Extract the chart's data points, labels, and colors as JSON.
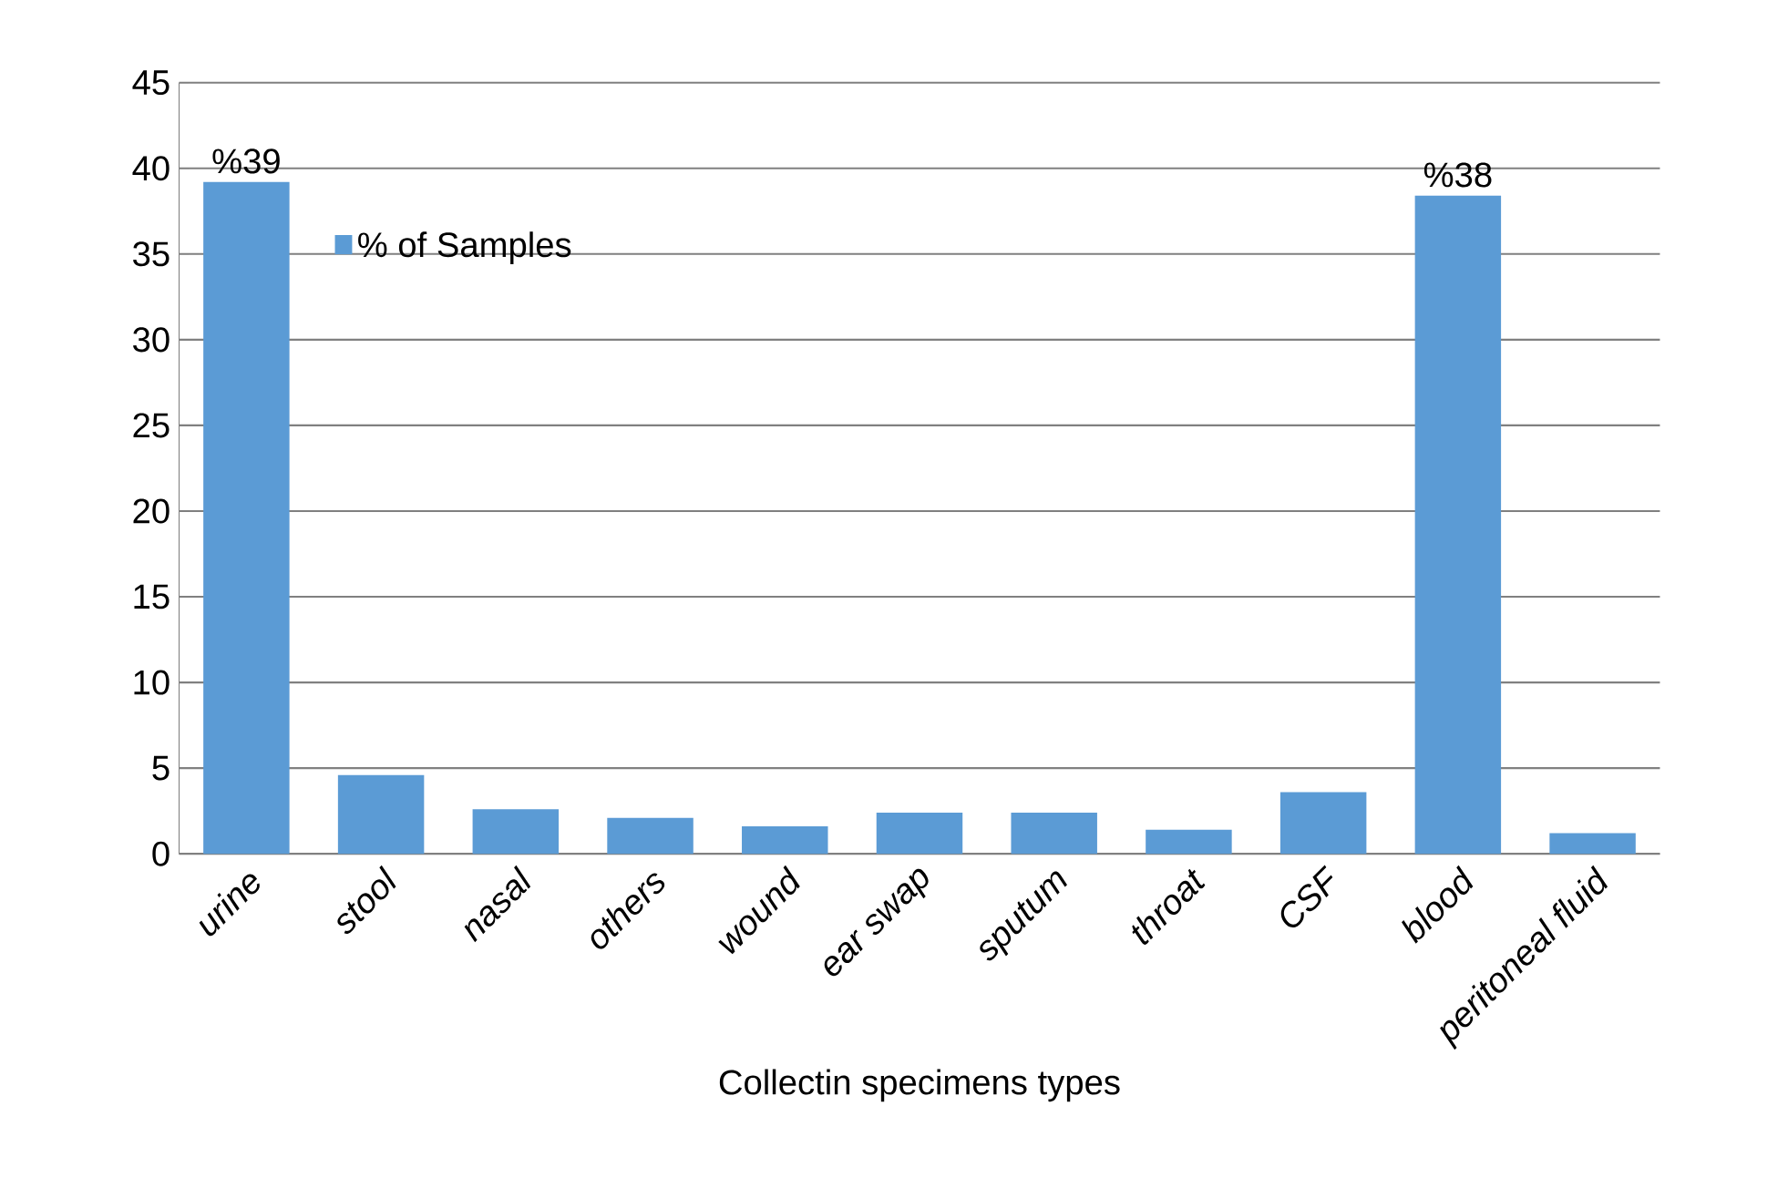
{
  "chart_data": {
    "type": "bar",
    "xlabel": "Collectin specimens types",
    "categories": [
      "urine",
      "stool",
      "nasal",
      "others",
      "wound",
      "ear swap",
      "sputum",
      "throat",
      "CSF",
      "blood",
      "peritoneal fluid"
    ],
    "series": [
      {
        "name": "% of Samples",
        "color": "#5b9bd5",
        "values": [
          39.2,
          4.6,
          2.6,
          2.1,
          1.6,
          2.4,
          2.4,
          1.4,
          3.6,
          38.4,
          1.2
        ],
        "value_labels": [
          "%39",
          null,
          null,
          null,
          null,
          null,
          null,
          null,
          null,
          "%38",
          null
        ]
      }
    ],
    "ylim": [
      0,
      45
    ],
    "yticks": [
      0,
      5,
      10,
      15,
      20,
      25,
      30,
      35,
      40,
      45
    ],
    "grid": "y",
    "legend": "top left"
  }
}
